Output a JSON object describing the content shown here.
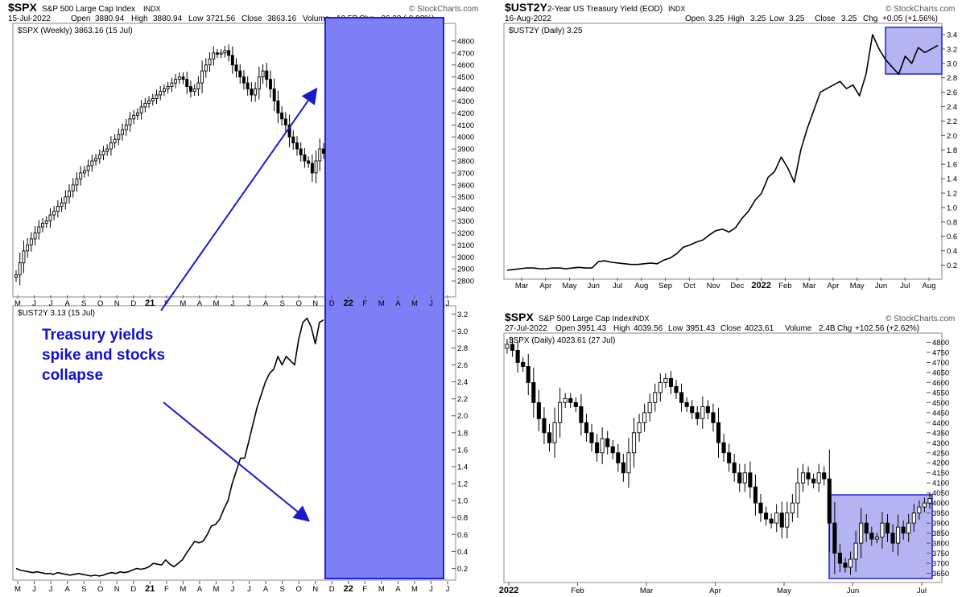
{
  "colors": {
    "highlight_fill": "#7f7ff5",
    "highlight_stroke": "#2222cc",
    "highlight_light": "#b4b4f2",
    "arrow": "#1a1acc",
    "annotation": "#1010c8"
  },
  "annotation_text": {
    "line1": "Treasury yields",
    "line2": "spike and stocks",
    "line3": "collapse"
  },
  "chart_data": [
    {
      "type": "candlestick",
      "panel": "left-top",
      "title": {
        "symbol": "$SPX",
        "name": "S&P 500 Large Cap Index",
        "exchange": "INDX",
        "brand": "© StockCharts.com"
      },
      "header": {
        "date": "15-Jul-2022",
        "open_label": "Open",
        "open": "3880.94",
        "high_label": "High",
        "high": "3880.94",
        "low_label": "Low",
        "low": "3721.56",
        "close_label": "Close",
        "close": "3863.16",
        "volume_label": "Volume",
        "volume": "10.5B",
        "chg_label": "Chg",
        "chg": "-36.22 (-0.93%)"
      },
      "legend": "$SPX (Weekly) 3863.16 (15 Jul)",
      "ylim": [
        2700,
        4900
      ],
      "y_ticks": [
        2800,
        2900,
        3000,
        3100,
        3200,
        3300,
        3400,
        3500,
        3600,
        3700,
        3800,
        3900,
        4000,
        4100,
        4200,
        4300,
        4400,
        4500,
        4600,
        4700,
        4800
      ],
      "x_ticks": [
        "M",
        "J",
        "J",
        "A",
        "S",
        "O",
        "N",
        "D",
        "21",
        "F",
        "M",
        "A",
        "M",
        "J",
        "J",
        "A",
        "S",
        "O",
        "N",
        "D",
        "22",
        "F",
        "M",
        "A",
        "M",
        "J",
        "J"
      ],
      "series": [
        {
          "values": [
            2850,
            2950,
            3050,
            3100,
            3150,
            3200,
            3250,
            3280,
            3300,
            3350,
            3380,
            3420,
            3450,
            3500,
            3550,
            3600,
            3650,
            3700,
            3720,
            3760,
            3800,
            3820,
            3850,
            3880,
            3900,
            3950,
            3980,
            4020,
            4060,
            4100,
            4150,
            4180,
            4200,
            4250,
            4280,
            4300,
            4320,
            4350,
            4380,
            4400,
            4420,
            4450,
            4480,
            4500,
            4480,
            4420,
            4380,
            4400,
            4450,
            4550,
            4600,
            4650,
            4700,
            4690,
            4700,
            4720,
            4680,
            4600,
            4550,
            4500,
            4450,
            4400,
            4350,
            4400,
            4500,
            4550,
            4480,
            4400,
            4300,
            4200,
            4150,
            4100,
            4000,
            3950,
            3900,
            3850,
            3800,
            3780,
            3700,
            3800,
            3900,
            3863
          ]
        }
      ]
    },
    {
      "type": "line",
      "panel": "left-bottom",
      "legend": "$UST2Y 3.13 (15 Jul)",
      "ylim": [
        0.1,
        3.25
      ],
      "y_ticks": [
        "0.2",
        "0.4",
        "0.6",
        "0.8",
        "1.0",
        "1.2",
        "1.4",
        "1.6",
        "1.8",
        "2.0",
        "2.2",
        "2.4",
        "2.6",
        "2.8",
        "3.0",
        "3.2"
      ],
      "x_ticks": [
        "M",
        "J",
        "J",
        "A",
        "S",
        "O",
        "N",
        "D",
        "21",
        "F",
        "M",
        "A",
        "M",
        "J",
        "J",
        "A",
        "S",
        "O",
        "N",
        "D",
        "22",
        "F",
        "M",
        "A",
        "M",
        "J",
        "J"
      ],
      "series": [
        {
          "values": [
            0.2,
            0.18,
            0.17,
            0.16,
            0.15,
            0.16,
            0.15,
            0.14,
            0.14,
            0.13,
            0.15,
            0.14,
            0.13,
            0.12,
            0.13,
            0.14,
            0.13,
            0.12,
            0.11,
            0.12,
            0.11,
            0.12,
            0.14,
            0.15,
            0.14,
            0.16,
            0.15,
            0.16,
            0.18,
            0.2,
            0.19,
            0.2,
            0.22,
            0.26,
            0.25,
            0.24,
            0.3,
            0.25,
            0.22,
            0.26,
            0.3,
            0.38,
            0.45,
            0.52,
            0.5,
            0.52,
            0.6,
            0.7,
            0.72,
            0.78,
            0.9,
            1.0,
            1.2,
            1.35,
            1.5,
            1.5,
            1.7,
            1.9,
            2.1,
            2.25,
            2.4,
            2.5,
            2.55,
            2.7,
            2.6,
            2.7,
            2.65,
            2.6,
            2.9,
            3.1,
            3.15,
            3.05,
            2.85,
            3.1,
            3.13
          ]
        }
      ]
    },
    {
      "type": "line",
      "panel": "right-top",
      "title": {
        "symbol": "$UST2Y",
        "name": "2-Year US Treasury Yield (EOD)",
        "exchange": "INDX",
        "brand": "© StockCharts.com"
      },
      "header": {
        "date": "16-Aug-2022",
        "open_label": "Open",
        "open": "3.25",
        "high_label": "High",
        "high": "3.25",
        "low_label": "Low",
        "low": "3.25",
        "close_label": "Close",
        "close": "3.25",
        "chg_label": "Chg",
        "chg": "+0.05 (+1.56%)"
      },
      "legend": "$UST2Y (Daily) 3.25",
      "ylim": [
        0.05,
        3.5
      ],
      "y_ticks": [
        "0.2",
        "0.4",
        "0.6",
        "0.8",
        "1.0",
        "1.2",
        "1.4",
        "1.6",
        "1.8",
        "2.0",
        "2.2",
        "2.4",
        "2.6",
        "2.8",
        "3.0",
        "3.2",
        "3.4"
      ],
      "x_ticks": [
        "Mar",
        "Apr",
        "May",
        "Jun",
        "Jul",
        "Aug",
        "Sep",
        "Oct",
        "Nov",
        "Dec",
        "2022",
        "Feb",
        "Mar",
        "Apr",
        "May",
        "Jun",
        "Jul",
        "Aug"
      ],
      "series": [
        {
          "values": [
            0.13,
            0.14,
            0.15,
            0.16,
            0.16,
            0.15,
            0.15,
            0.16,
            0.16,
            0.15,
            0.16,
            0.17,
            0.16,
            0.16,
            0.25,
            0.26,
            0.24,
            0.23,
            0.22,
            0.21,
            0.21,
            0.22,
            0.23,
            0.22,
            0.27,
            0.3,
            0.36,
            0.45,
            0.48,
            0.52,
            0.55,
            0.62,
            0.68,
            0.7,
            0.66,
            0.72,
            0.85,
            0.95,
            1.1,
            1.2,
            1.42,
            1.5,
            1.7,
            1.55,
            1.35,
            1.8,
            2.1,
            2.35,
            2.6,
            2.65,
            2.7,
            2.75,
            2.65,
            2.7,
            2.55,
            2.85,
            3.4,
            3.2,
            3.05,
            2.95,
            2.85,
            3.1,
            3.0,
            3.22,
            3.15,
            3.2,
            3.25
          ]
        }
      ]
    },
    {
      "type": "candlestick",
      "panel": "right-bottom",
      "title": {
        "symbol": "$SPX",
        "name": "S&P 500 Large Cap Index",
        "exchange": "INDX",
        "brand": "© StockCharts.com"
      },
      "header": {
        "date": "27-Jul-2022",
        "open_label": "Open",
        "open": "3951.43",
        "high_label": "High",
        "high": "4039.56",
        "low_label": "Low",
        "low": "3951.43",
        "close_label": "Close",
        "close": "4023.61",
        "volume_label": "Volume",
        "volume": "2.4B",
        "chg_label": "Chg",
        "chg": "+102.56 (+2.62%)"
      },
      "legend": "$SPX (Daily) 4023.61 (27 Jul)",
      "ylim": [
        3620,
        4830
      ],
      "y_ticks": [
        3650,
        3700,
        3750,
        3800,
        3850,
        3900,
        3950,
        4000,
        4050,
        4100,
        4150,
        4200,
        4250,
        4300,
        4350,
        4400,
        4450,
        4500,
        4550,
        4600,
        4650,
        4700,
        4750,
        4800
      ],
      "x_ticks": [
        "2022",
        "Feb",
        "Mar",
        "Apr",
        "May",
        "Jun",
        "Jul"
      ],
      "series": [
        {
          "values": [
            4790,
            4760,
            4700,
            4680,
            4600,
            4500,
            4420,
            4350,
            4300,
            4400,
            4500,
            4520,
            4500,
            4480,
            4400,
            4350,
            4300,
            4250,
            4320,
            4280,
            4250,
            4200,
            4150,
            4250,
            4350,
            4400,
            4450,
            4500,
            4550,
            4600,
            4620,
            4580,
            4550,
            4500,
            4480,
            4450,
            4420,
            4480,
            4450,
            4400,
            4300,
            4250,
            4200,
            4150,
            4100,
            4150,
            4080,
            4000,
            3950,
            3920,
            3900,
            3950,
            3880,
            3950,
            4000,
            4100,
            4150,
            4120,
            4100,
            4150,
            4120,
            3900,
            3750,
            3700,
            3680,
            3720,
            3800,
            3900,
            3850,
            3820,
            3830,
            3900,
            3850,
            3800,
            3880,
            3850,
            3900,
            3950,
            3980,
            4000,
            4023
          ]
        }
      ]
    }
  ]
}
